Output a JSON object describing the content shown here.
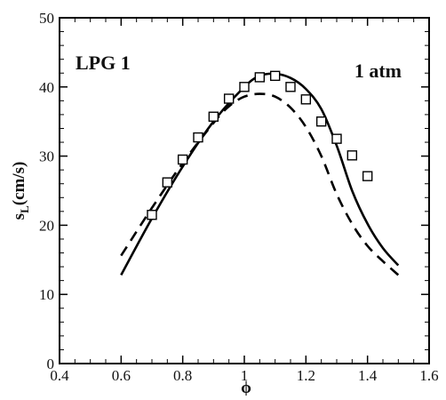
{
  "chart_data": {
    "type": "line",
    "title": "",
    "xlabel": "ϕ",
    "ylabel": "s",
    "ylabel_sub": "L",
    "ylabel_unit": "(cm/s)",
    "xlim": [
      0.4,
      1.6
    ],
    "ylim": [
      0,
      50
    ],
    "x_ticks": [
      0.4,
      0.6,
      0.8,
      1.0,
      1.2,
      1.4,
      1.6
    ],
    "x_tick_labels": [
      "0.4",
      "0.6",
      "0.8",
      "1",
      "1.2",
      "1.4",
      "1.6"
    ],
    "y_ticks": [
      0,
      10,
      20,
      30,
      40,
      50
    ],
    "y_tick_labels": [
      "0",
      "10",
      "20",
      "30",
      "40",
      "50"
    ],
    "grid": false,
    "legend": "none",
    "annotations": [
      {
        "text": "LPG 1",
        "position": "top-left"
      },
      {
        "text": "1 atm",
        "position": "top-right"
      }
    ],
    "series": [
      {
        "style": "solid",
        "color": "#000000",
        "x": [
          0.6,
          0.7,
          0.8,
          0.9,
          1.0,
          1.05,
          1.1,
          1.15,
          1.2,
          1.25,
          1.3,
          1.35,
          1.4,
          1.45,
          1.5
        ],
        "y": [
          12.8,
          21.0,
          28.5,
          35.0,
          40.0,
          41.6,
          41.9,
          41.3,
          39.7,
          36.8,
          31.5,
          25.0,
          20.2,
          16.7,
          14.2
        ]
      },
      {
        "style": "dashed",
        "color": "#000000",
        "x": [
          0.6,
          0.7,
          0.8,
          0.9,
          0.95,
          1.0,
          1.05,
          1.1,
          1.15,
          1.2,
          1.25,
          1.3,
          1.35,
          1.4,
          1.45,
          1.5
        ],
        "y": [
          15.6,
          22.5,
          29.0,
          34.8,
          37.2,
          38.6,
          39.0,
          38.6,
          37.0,
          34.2,
          30.0,
          24.5,
          20.2,
          17.0,
          14.8,
          12.8
        ]
      },
      {
        "style": "markers",
        "marker": "open-square",
        "color": "#000000",
        "x": [
          0.7,
          0.75,
          0.8,
          0.85,
          0.9,
          0.95,
          1.0,
          1.05,
          1.1,
          1.15,
          1.2,
          1.25,
          1.3,
          1.35,
          1.4
        ],
        "y": [
          21.5,
          26.2,
          29.5,
          32.7,
          35.7,
          38.3,
          40.0,
          41.4,
          41.6,
          40.0,
          38.2,
          35.0,
          32.5,
          30.1,
          27.1
        ]
      }
    ]
  }
}
